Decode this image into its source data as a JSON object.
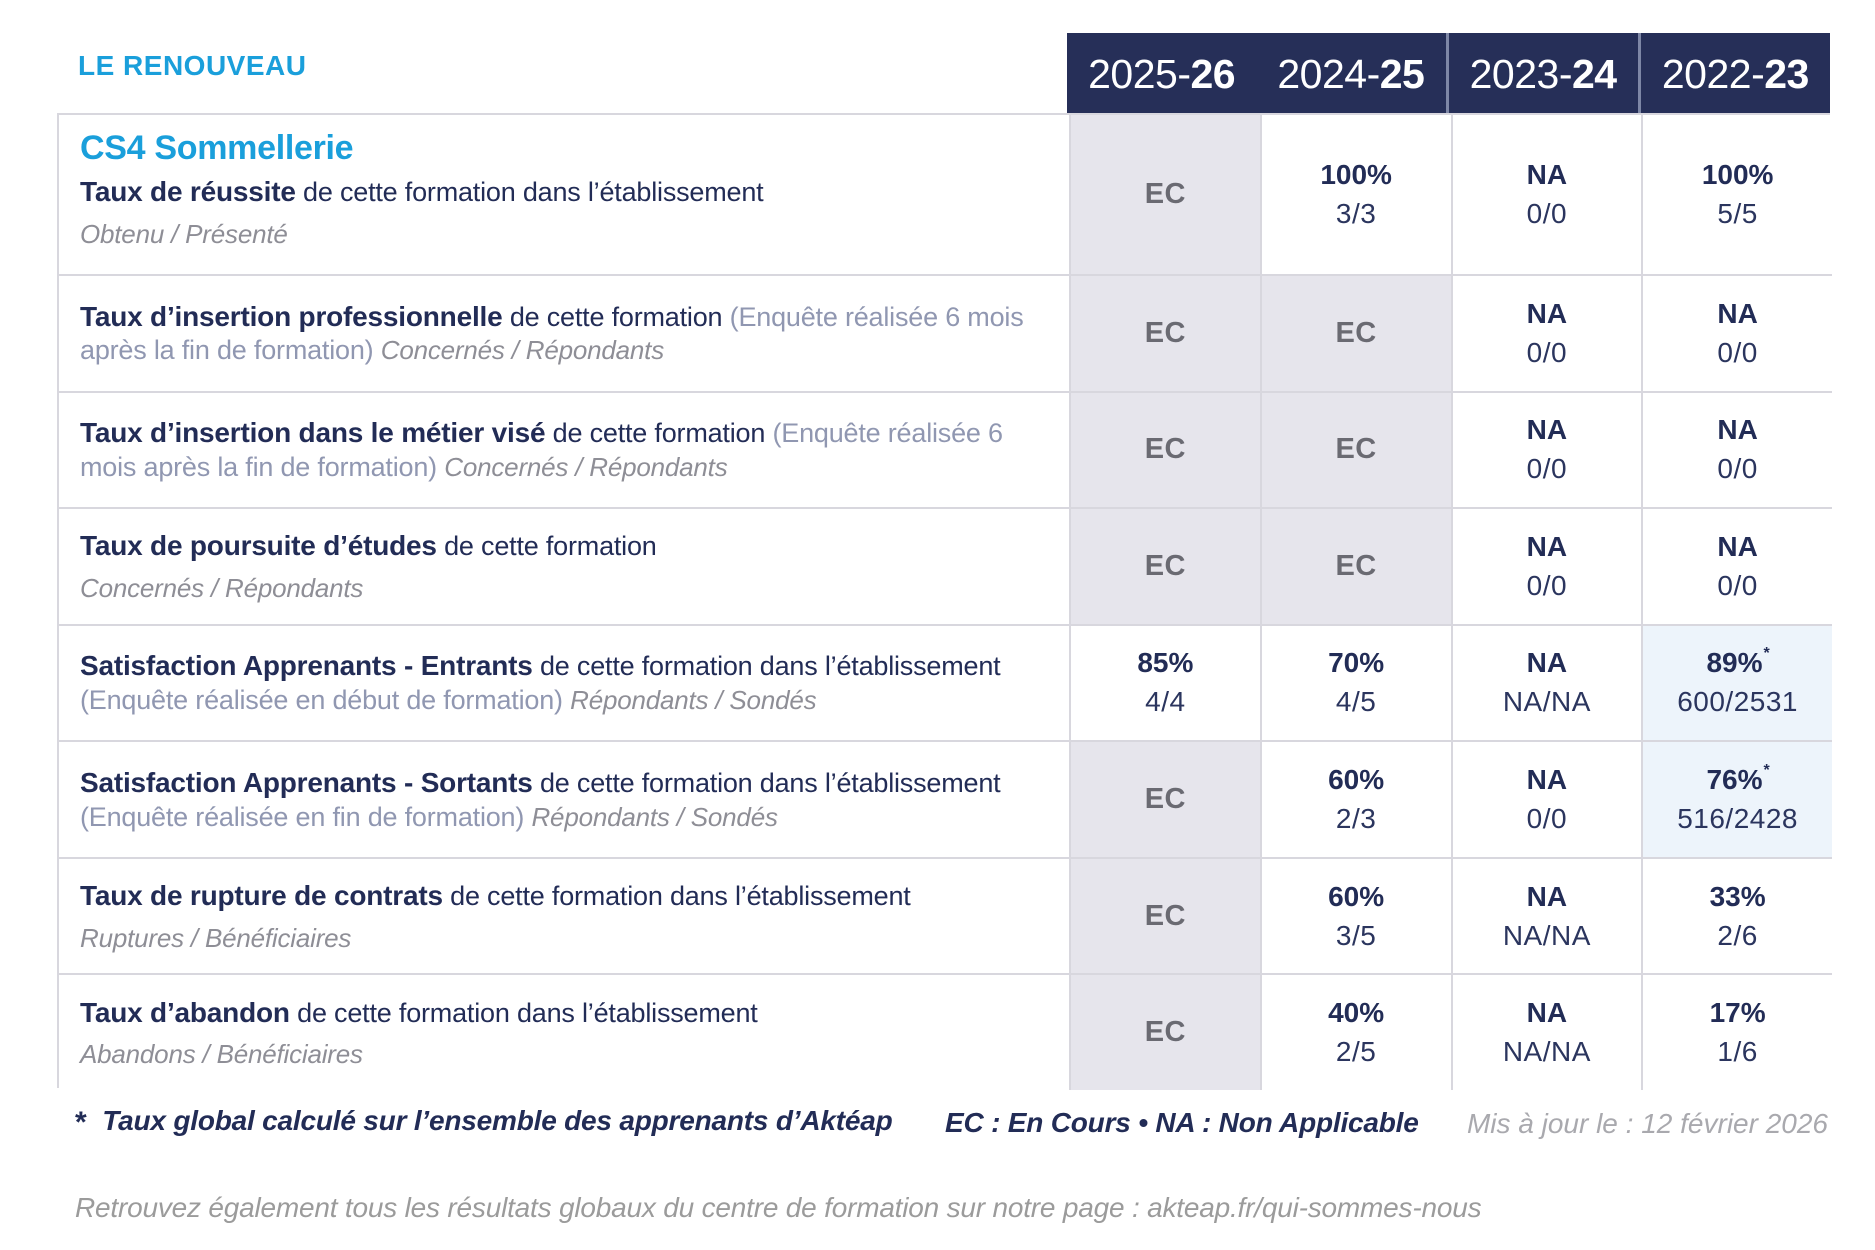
{
  "brand": "LE RENOUVEAU",
  "course_title": "CS4 Sommellerie",
  "columns": [
    {
      "prefix": "2025-",
      "suffix": "26"
    },
    {
      "prefix": "2024-",
      "suffix": "25"
    },
    {
      "prefix": "2023-",
      "suffix": "24"
    },
    {
      "prefix": "2022-",
      "suffix": "23"
    }
  ],
  "rows": [
    {
      "title": "Taux de réussite",
      "desc": "de cette formation dans l’établissement",
      "paren": "",
      "sub": "Obtenu / Présenté",
      "sub_own_line": true,
      "cells": [
        {
          "type": "ec",
          "text": "EC",
          "bg": "lav"
        },
        {
          "type": "value",
          "pct": "100%",
          "frac": "3/3",
          "star": "",
          "bg": ""
        },
        {
          "type": "value",
          "pct": "NA",
          "frac": "0/0",
          "star": "",
          "bg": ""
        },
        {
          "type": "value",
          "pct": "100%",
          "frac": "5/5",
          "star": "",
          "bg": ""
        }
      ]
    },
    {
      "title": "Taux d’insertion professionnelle",
      "desc": "de cette formation",
      "paren": "(Enquête réalisée 6 mois après la fin de formation)",
      "sub": "Concernés / Répondants",
      "sub_own_line": false,
      "cells": [
        {
          "type": "ec",
          "text": "EC",
          "bg": "lav"
        },
        {
          "type": "ec",
          "text": "EC",
          "bg": "lav"
        },
        {
          "type": "value",
          "pct": "NA",
          "frac": "0/0",
          "star": "",
          "bg": ""
        },
        {
          "type": "value",
          "pct": "NA",
          "frac": "0/0",
          "star": "",
          "bg": ""
        }
      ]
    },
    {
      "title": "Taux d’insertion dans le métier visé",
      "desc": "de cette formation",
      "paren": "(Enquête réalisée 6 mois après la fin de formation)",
      "sub": "Concernés / Répondants",
      "sub_own_line": false,
      "cells": [
        {
          "type": "ec",
          "text": "EC",
          "bg": "lav"
        },
        {
          "type": "ec",
          "text": "EC",
          "bg": "lav"
        },
        {
          "type": "value",
          "pct": "NA",
          "frac": "0/0",
          "star": "",
          "bg": ""
        },
        {
          "type": "value",
          "pct": "NA",
          "frac": "0/0",
          "star": "",
          "bg": ""
        }
      ]
    },
    {
      "title": "Taux de poursuite d’études",
      "desc": "de cette formation",
      "paren": "",
      "sub": "Concernés / Répondants",
      "sub_own_line": true,
      "cells": [
        {
          "type": "ec",
          "text": "EC",
          "bg": "lav"
        },
        {
          "type": "ec",
          "text": "EC",
          "bg": "lav"
        },
        {
          "type": "value",
          "pct": "NA",
          "frac": "0/0",
          "star": "",
          "bg": ""
        },
        {
          "type": "value",
          "pct": "NA",
          "frac": "0/0",
          "star": "",
          "bg": ""
        }
      ]
    },
    {
      "title": "Satisfaction Apprenants - Entrants",
      "desc": "de cette formation dans l’établissement",
      "paren": "(Enquête réalisée en début de formation)",
      "sub": "Répondants / Sondés",
      "sub_own_line": false,
      "cells": [
        {
          "type": "value",
          "pct": "85%",
          "frac": "4/4",
          "star": "",
          "bg": ""
        },
        {
          "type": "value",
          "pct": "70%",
          "frac": "4/5",
          "star": "",
          "bg": ""
        },
        {
          "type": "value",
          "pct": "NA",
          "frac": "NA/NA",
          "star": "",
          "bg": ""
        },
        {
          "type": "value",
          "pct": "89%",
          "frac": "600/2531",
          "star": "*",
          "bg": "blue"
        }
      ]
    },
    {
      "title": "Satisfaction Apprenants - Sortants",
      "desc": "de cette formation dans l’établissement",
      "paren": "(Enquête réalisée en fin de formation)",
      "sub": "Répondants / Sondés",
      "sub_own_line": false,
      "cells": [
        {
          "type": "ec",
          "text": "EC",
          "bg": "lav"
        },
        {
          "type": "value",
          "pct": "60%",
          "frac": "2/3",
          "star": "",
          "bg": ""
        },
        {
          "type": "value",
          "pct": "NA",
          "frac": "0/0",
          "star": "",
          "bg": ""
        },
        {
          "type": "value",
          "pct": "76%",
          "frac": "516/2428",
          "star": "*",
          "bg": "blue"
        }
      ]
    },
    {
      "title": "Taux de rupture de contrats",
      "desc": "de cette formation dans l’établissement",
      "paren": "",
      "sub": "Ruptures / Bénéficiaires",
      "sub_own_line": true,
      "cells": [
        {
          "type": "ec",
          "text": "EC",
          "bg": "lav"
        },
        {
          "type": "value",
          "pct": "60%",
          "frac": "3/5",
          "star": "",
          "bg": ""
        },
        {
          "type": "value",
          "pct": "NA",
          "frac": "NA/NA",
          "star": "",
          "bg": ""
        },
        {
          "type": "value",
          "pct": "33%",
          "frac": "2/6",
          "star": "",
          "bg": ""
        }
      ]
    },
    {
      "title": "Taux d’abandon",
      "desc": "de cette formation dans l’établissement",
      "paren": "",
      "sub": "Abandons / Bénéficiaires",
      "sub_own_line": true,
      "cells": [
        {
          "type": "ec",
          "text": "EC",
          "bg": "lav"
        },
        {
          "type": "value",
          "pct": "40%",
          "frac": "2/5",
          "star": "",
          "bg": ""
        },
        {
          "type": "value",
          "pct": "NA",
          "frac": "NA/NA",
          "star": "",
          "bg": ""
        },
        {
          "type": "value",
          "pct": "17%",
          "frac": "1/6",
          "star": "",
          "bg": ""
        }
      ]
    }
  ],
  "footnote": {
    "star": "*",
    "text": "Taux global calculé sur l’ensemble des apprenants d’Aktéap",
    "legend": "EC : En Cours  •  NA : Non Applicable",
    "updated": "Mis à jour le : 12 février 2026"
  },
  "bottom_note": "Retrouvez également tous les résultats globaux du centre de formation sur notre page : akteap.fr/qui-sommes-nous",
  "colors": {
    "accent_blue": "#1a9fdb",
    "navy": "#222c56",
    "header_bg": "#262f58",
    "header_separator": "#7e87a6",
    "ec_text": "#6a6a72",
    "ec_cell_bg": "#e6e5ec",
    "highlight_cell_bg": "#edf4fb",
    "border": "#d8d7de",
    "muted_gray": "#8e8e96",
    "paren_gray_blue": "#9097b1",
    "footer_gray": "#9b9b9b"
  }
}
